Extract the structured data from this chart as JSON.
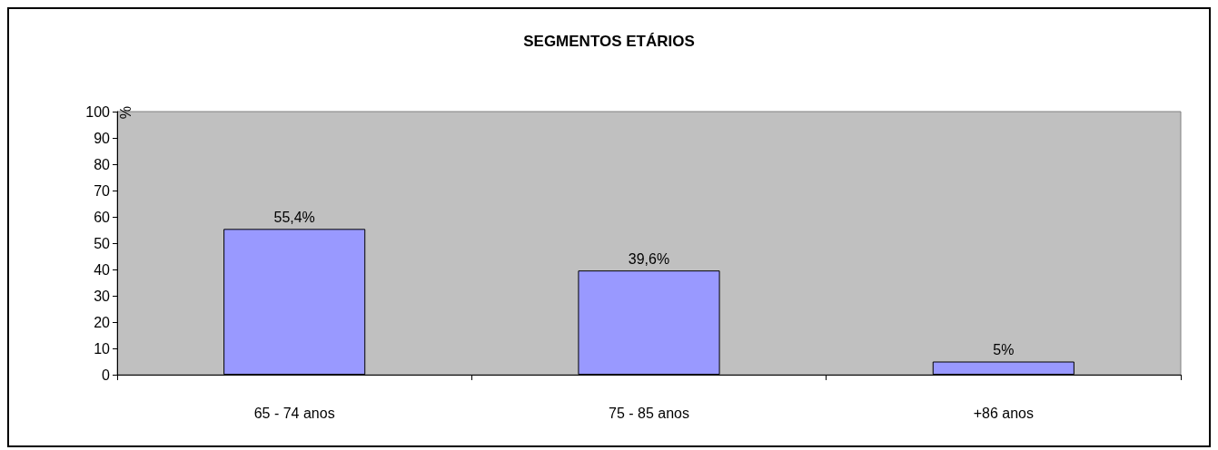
{
  "chart_data": {
    "type": "bar",
    "title": "SEGMENTOS ETÁRIOS",
    "ylabel": "%",
    "categories": [
      "65 - 74 anos",
      "75 - 85 anos",
      "+86 anos"
    ],
    "values": [
      55.4,
      39.6,
      5
    ],
    "color": "#9999ff",
    "value_labels": [
      "55,4%",
      "39,6%",
      "5%"
    ],
    "ylim": [
      0,
      100
    ],
    "yticks": [
      0,
      10,
      20,
      30,
      40,
      50,
      60,
      70,
      80,
      90,
      100
    ],
    "grid": false
  }
}
